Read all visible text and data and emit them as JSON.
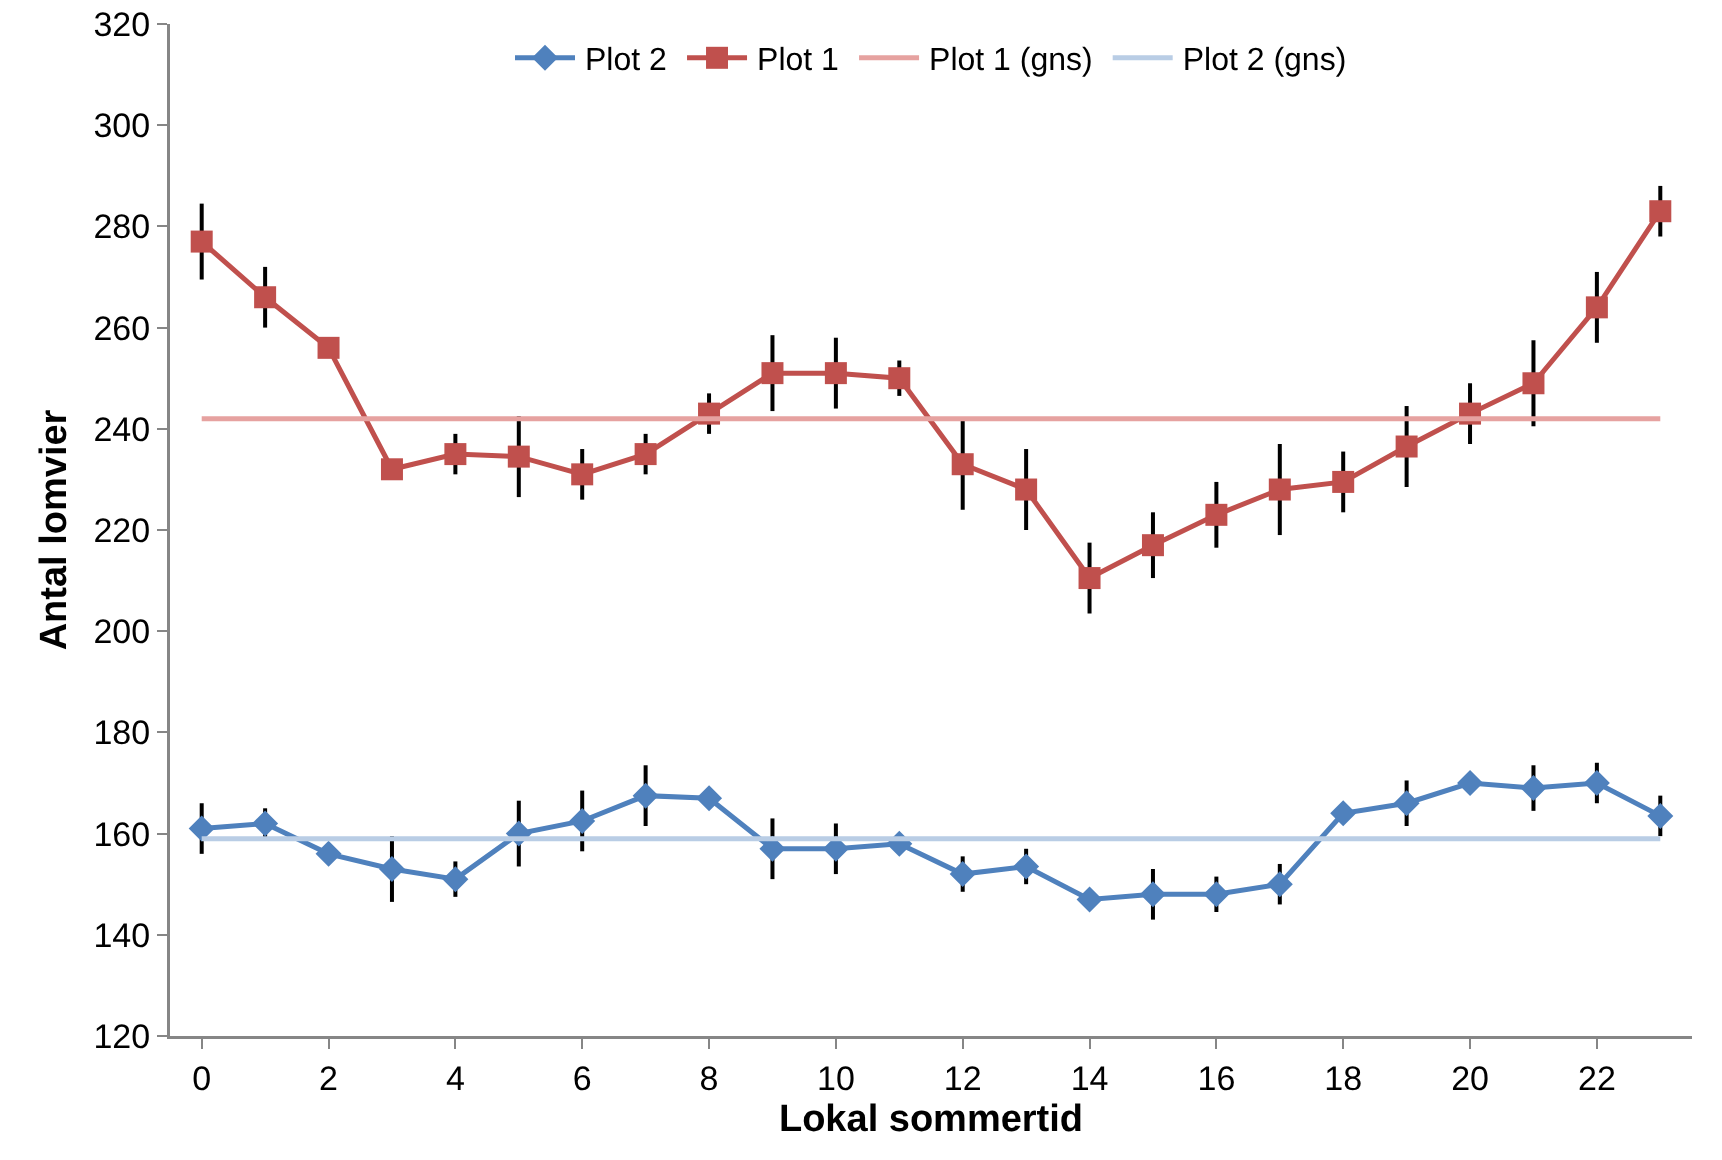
{
  "chart_data": {
    "type": "line",
    "xlabel": "Lokal sommertid",
    "ylabel": "Antal lomvier",
    "x": [
      0,
      1,
      2,
      3,
      4,
      5,
      6,
      7,
      8,
      9,
      10,
      11,
      12,
      13,
      14,
      15,
      16,
      17,
      18,
      19,
      20,
      21,
      22,
      23
    ],
    "xlim": [
      -0.5,
      23.5
    ],
    "xticks": [
      0,
      2,
      4,
      6,
      8,
      10,
      12,
      14,
      16,
      18,
      20,
      22
    ],
    "ylim": [
      120,
      320
    ],
    "yticks": [
      120,
      140,
      160,
      180,
      200,
      220,
      240,
      260,
      280,
      300,
      320
    ],
    "grid": false,
    "legend": "top",
    "line_style": "solid",
    "series": [
      {
        "name": "Plot 2",
        "color": "#4f81bd",
        "marker": "diamond",
        "values": [
          161,
          162,
          156,
          153,
          151,
          160,
          162.5,
          167.5,
          167,
          157,
          157,
          158,
          152,
          153.5,
          147,
          148,
          148,
          150,
          164,
          166,
          170,
          169,
          170,
          163.5
        ],
        "errors": [
          5,
          3,
          null,
          6.5,
          3.5,
          6.5,
          6,
          6,
          null,
          6,
          5,
          null,
          3.5,
          3.5,
          null,
          5,
          3.5,
          4,
          null,
          4.5,
          null,
          4.5,
          4,
          4
        ]
      },
      {
        "name": "Plot 1",
        "color": "#c0504d",
        "marker": "square",
        "values": [
          277,
          266,
          256,
          232,
          235,
          234.5,
          231,
          235,
          243,
          251,
          251,
          250,
          233,
          228,
          210.5,
          217,
          223,
          228,
          229.5,
          236.5,
          243,
          249,
          264,
          283
        ],
        "errors": [
          7.5,
          6,
          null,
          null,
          4,
          8,
          5,
          4,
          4,
          7.5,
          7,
          3.5,
          9,
          8,
          7,
          6.5,
          6.5,
          9,
          6,
          8,
          6,
          8.5,
          7,
          5
        ]
      },
      {
        "name": "Plot 1 (gns)",
        "color": "#e6a2a0",
        "marker": "none",
        "values": [
          242,
          242,
          242,
          242,
          242,
          242,
          242,
          242,
          242,
          242,
          242,
          242,
          242,
          242,
          242,
          242,
          242,
          242,
          242,
          242,
          242,
          242,
          242,
          242
        ]
      },
      {
        "name": "Plot 2 (gns)",
        "color": "#b9cde5",
        "marker": "none",
        "values": [
          159,
          159,
          159,
          159,
          159,
          159,
          159,
          159,
          159,
          159,
          159,
          159,
          159,
          159,
          159,
          159,
          159,
          159,
          159,
          159,
          159,
          159,
          159,
          159
        ]
      }
    ]
  }
}
